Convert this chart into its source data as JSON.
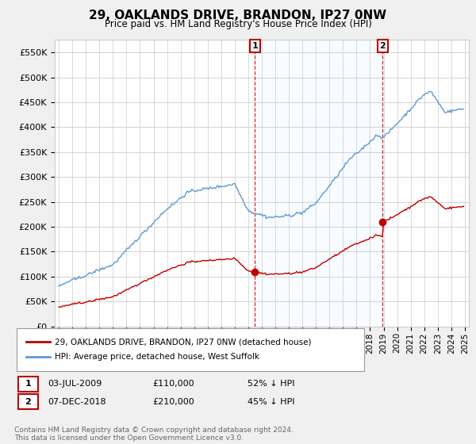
{
  "title": "29, OAKLANDS DRIVE, BRANDON, IP27 0NW",
  "subtitle": "Price paid vs. HM Land Registry's House Price Index (HPI)",
  "hpi_label": "HPI: Average price, detached house, West Suffolk",
  "price_label": "29, OAKLANDS DRIVE, BRANDON, IP27 0NW (detached house)",
  "hpi_color": "#5b9bd5",
  "price_color": "#c00000",
  "vline_color": "#c00000",
  "shade_color": "#ddeeff",
  "annotation1": {
    "x": 2009.5,
    "label": "1",
    "date": "03-JUL-2009",
    "price": "£110,000",
    "pct": "52% ↓ HPI"
  },
  "annotation2": {
    "x": 2018.92,
    "label": "2",
    "date": "07-DEC-2018",
    "price": "£210,000",
    "pct": "45% ↓ HPI"
  },
  "sale1_value": 110000,
  "sale2_value": 210000,
  "ylim": [
    0,
    575000
  ],
  "yticks": [
    0,
    50000,
    100000,
    150000,
    200000,
    250000,
    300000,
    350000,
    400000,
    450000,
    500000,
    550000
  ],
  "ytick_labels": [
    "£0",
    "£50K",
    "£100K",
    "£150K",
    "£200K",
    "£250K",
    "£300K",
    "£350K",
    "£400K",
    "£450K",
    "£500K",
    "£550K"
  ],
  "footnote": "Contains HM Land Registry data © Crown copyright and database right 2024.\nThis data is licensed under the Open Government Licence v3.0.",
  "background_color": "#f0f0f0",
  "plot_background": "#ffffff",
  "grid_color": "#cccccc",
  "legend_edge_color": "#999999"
}
